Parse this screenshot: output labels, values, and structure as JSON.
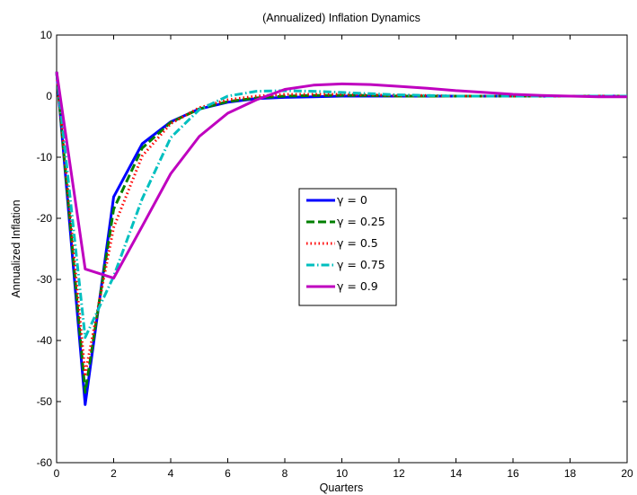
{
  "chart_data": {
    "type": "line",
    "title": "(Annualized) Inflation Dynamics",
    "xlabel": "Quarters",
    "ylabel": "Annualized Inflation",
    "xlim": [
      0,
      20
    ],
    "ylim": [
      -60,
      10
    ],
    "xticks": [
      0,
      2,
      4,
      6,
      8,
      10,
      12,
      14,
      16,
      18,
      20
    ],
    "yticks": [
      10,
      0,
      -10,
      -20,
      -30,
      -40,
      -50,
      -60
    ],
    "grid": false,
    "legend_position": "center",
    "x": [
      0,
      1,
      2,
      3,
      4,
      5,
      6,
      7,
      8,
      9,
      10,
      11,
      12,
      13,
      14,
      15,
      16,
      17,
      18,
      19,
      20
    ],
    "series": [
      {
        "name": "γ = 0",
        "color": "#0000ff",
        "style": "solid",
        "values": [
          4,
          -50.5,
          -16.5,
          -7.8,
          -4.2,
          -2.1,
          -1.0,
          -0.4,
          -0.2,
          -0.1,
          0,
          0,
          0,
          0,
          0,
          0,
          0,
          0,
          0,
          0,
          0
        ]
      },
      {
        "name": "γ = 0.25",
        "color": "#007f00",
        "style": "dashed",
        "values": [
          4,
          -48.5,
          -18.5,
          -8.5,
          -4.3,
          -2.1,
          -0.9,
          -0.3,
          0,
          0.1,
          0.1,
          0.1,
          0,
          0,
          0,
          0,
          0,
          0,
          0,
          0,
          0
        ]
      },
      {
        "name": "γ = 0.5",
        "color": "#ff0000",
        "style": "dotted",
        "values": [
          4,
          -45.5,
          -21.5,
          -9.8,
          -4.5,
          -1.9,
          -0.6,
          0,
          0.3,
          0.3,
          0.3,
          0.2,
          0.1,
          0.1,
          0,
          0,
          0,
          0,
          0,
          0,
          0
        ]
      },
      {
        "name": "γ = 0.75",
        "color": "#00bfbf",
        "style": "dashdot",
        "values": [
          4,
          -39.5,
          -29.5,
          -16.8,
          -6.8,
          -2.2,
          0,
          0.8,
          0.9,
          0.8,
          0.6,
          0.4,
          0.2,
          0.1,
          0,
          0,
          0,
          0,
          0,
          0,
          0
        ]
      },
      {
        "name": "γ = 0.9",
        "color": "#bf00bf",
        "style": "solid",
        "values": [
          4,
          -28.3,
          -29.8,
          -21.3,
          -12.7,
          -6.6,
          -2.8,
          -0.6,
          1.1,
          1.8,
          2.0,
          1.9,
          1.6,
          1.3,
          0.9,
          0.6,
          0.3,
          0.1,
          0,
          -0.1,
          -0.1
        ]
      }
    ]
  }
}
